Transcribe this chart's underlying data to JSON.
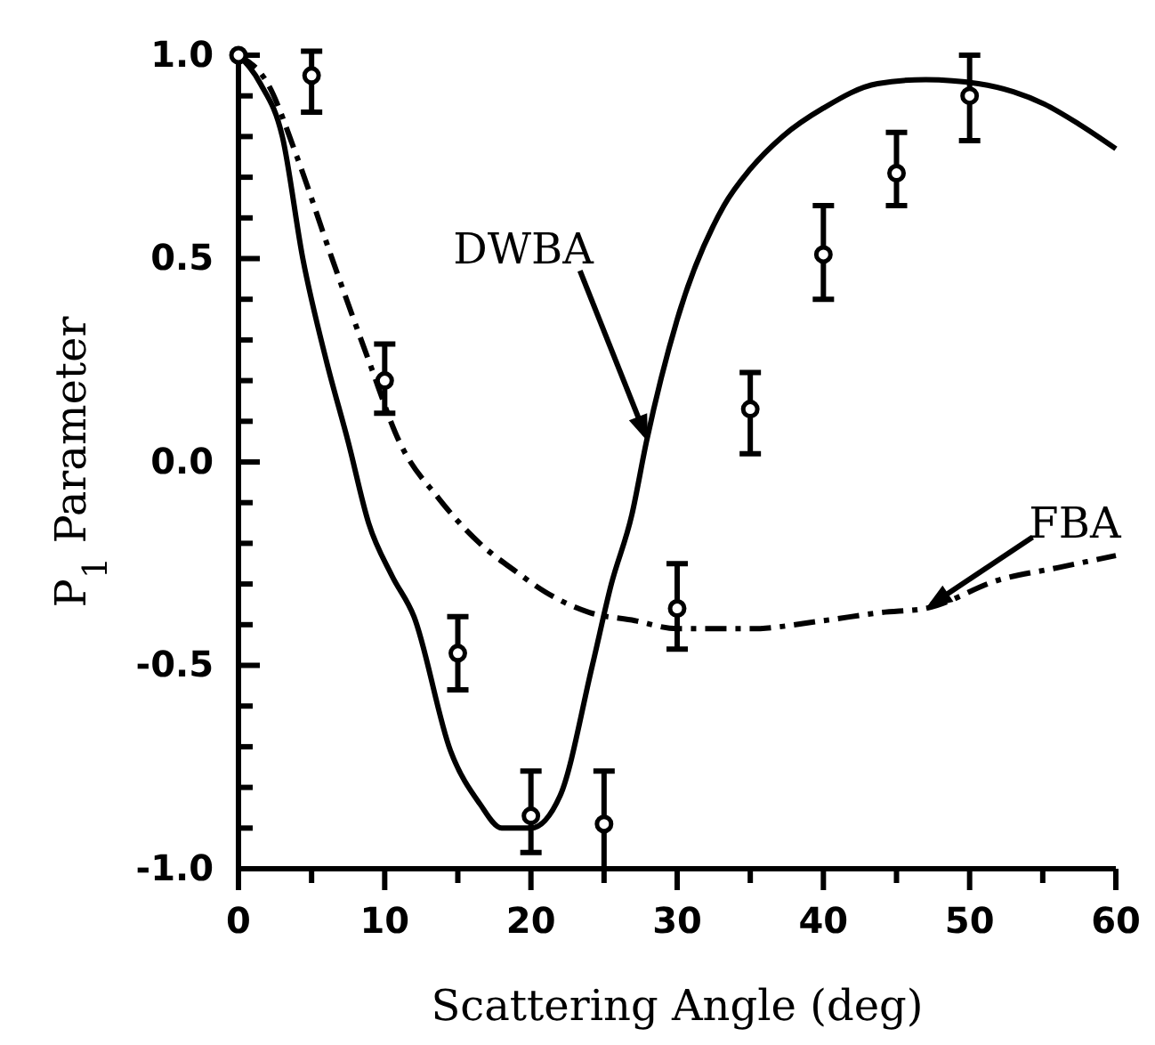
{
  "chart_data": {
    "type": "scatter",
    "xlabel": "Scattering Angle (deg)",
    "ylabel": "P$_{1}$ Parameter",
    "xlim": [
      0,
      60
    ],
    "ylim": [
      -1,
      1
    ],
    "xticks": [
      0,
      {
        "value": 5,
        "label": null
      },
      10,
      {
        "value": 15,
        "label": null
      },
      20,
      {
        "value": 25,
        "label": null
      },
      30,
      {
        "value": 35,
        "label": null
      },
      40,
      {
        "value": 45,
        "label": null
      },
      50,
      {
        "value": 55,
        "label": null
      },
      60
    ],
    "yticks": [
      {
        "value": -1,
        "label": "-1.0"
      },
      {
        "value": -0.9,
        "label": null
      },
      {
        "value": -0.8,
        "label": null
      },
      {
        "value": -0.7,
        "label": null
      },
      {
        "value": -0.6,
        "label": null
      },
      {
        "value": -0.5,
        "label": "-0.5"
      },
      {
        "value": -0.4,
        "label": null
      },
      {
        "value": -0.3,
        "label": null
      },
      {
        "value": -0.2,
        "label": null
      },
      {
        "value": -0.1,
        "label": null
      },
      {
        "value": 0,
        "label": "0.0"
      },
      {
        "value": 0.1,
        "label": null
      },
      {
        "value": 0.2,
        "label": null
      },
      {
        "value": 0.3,
        "label": null
      },
      {
        "value": 0.4,
        "label": null
      },
      {
        "value": 0.5,
        "label": "0.5"
      },
      {
        "value": 0.6,
        "label": null
      },
      {
        "value": 0.7,
        "label": null
      },
      {
        "value": 0.8,
        "label": null
      },
      {
        "value": 0.9,
        "label": null
      },
      {
        "value": 1,
        "label": "1.0"
      }
    ],
    "grid": false,
    "series": [
      {
        "type": "line",
        "color": "#000000",
        "line_style": "solid",
        "marker": "none",
        "x": [
          0,
          1.5,
          3,
          4.4,
          6,
          7.5,
          8.9,
          10.5,
          12,
          14.5,
          16.5,
          18,
          20,
          22,
          24.2,
          25.5,
          26.9,
          27.9,
          30,
          33.2,
          35,
          37.2,
          40,
          43.7,
          47,
          50.6,
          53,
          55.1,
          57.5,
          60
        ],
        "values": [
          1,
          0.93,
          0.8,
          0.5,
          0.25,
          0.05,
          -0.15,
          -0.28,
          -0.38,
          -0.71,
          -0.84,
          -0.9,
          -0.9,
          -0.82,
          -0.5,
          -0.3,
          -0.13,
          0.05,
          0.35,
          0.63,
          0.72,
          0.8,
          0.87,
          0.93,
          0.94,
          0.93,
          0.91,
          0.88,
          0.83,
          0.77
        ]
      },
      {
        "type": "line",
        "color": "#000000",
        "line_style": "dashed",
        "marker": "none",
        "x": [
          0,
          2,
          4,
          6.4,
          8.9,
          11,
          13.7,
          16.5,
          19,
          21,
          24,
          27.1,
          30,
          35,
          40,
          44,
          47,
          52,
          56,
          60
        ],
        "values": [
          1,
          0.93,
          0.75,
          0.5,
          0.25,
          0.05,
          -0.09,
          -0.2,
          -0.27,
          -0.32,
          -0.37,
          -0.39,
          -0.41,
          -0.41,
          -0.39,
          -0.37,
          -0.36,
          -0.29,
          -0.26,
          -0.23
        ]
      },
      {
        "color": "#000000",
        "marker": "circle",
        "x": [
          0,
          5,
          10,
          15,
          20,
          25,
          30,
          35,
          40,
          45,
          50
        ],
        "values": [
          1,
          0.95,
          0.2,
          -0.47,
          -0.87,
          -0.89,
          -0.36,
          0.13,
          0.51,
          0.71,
          0.9
        ],
        "errors": [
          null,
          [
            0.86,
            1.01
          ],
          [
            0.12,
            0.29
          ],
          [
            -0.56,
            -0.38
          ],
          [
            -0.96,
            -0.76
          ],
          [
            -1,
            -0.76
          ],
          [
            -0.46,
            -0.25
          ],
          [
            0.02,
            0.22
          ],
          [
            0.4,
            0.63
          ],
          [
            0.63,
            0.81
          ],
          [
            0.79,
            1
          ]
        ]
      }
    ],
    "annotations": [
      {
        "text": "DWBA",
        "x": 28,
        "y": 0.05
      },
      {
        "text": "FBA",
        "x": 47,
        "y": -0.36
      }
    ]
  }
}
